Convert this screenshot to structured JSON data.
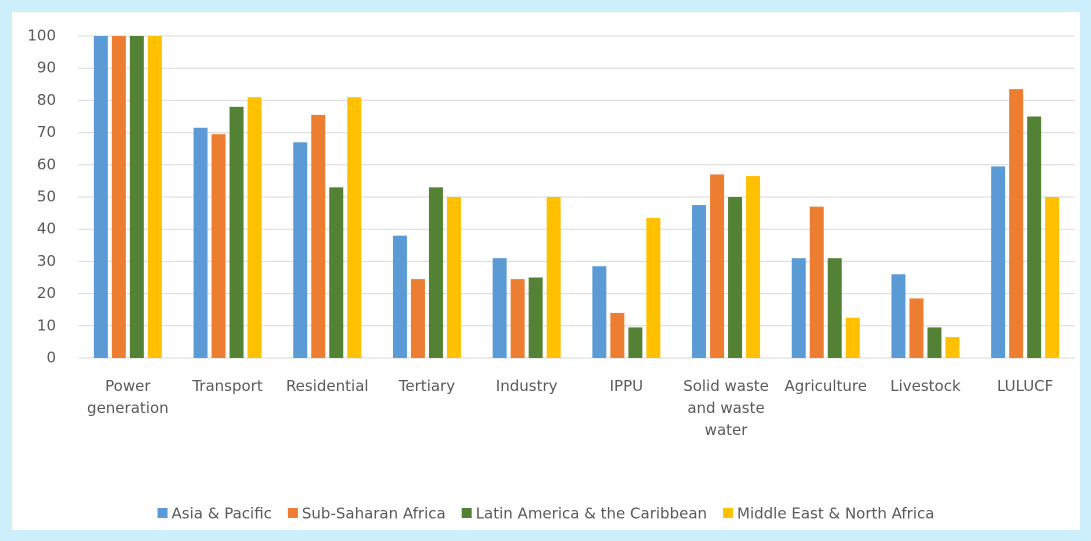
{
  "chart_data": {
    "type": "bar",
    "categories": [
      "Power generation",
      "Transport",
      "Residential",
      "Tertiary",
      "Industry",
      "IPPU",
      "Solid waste and waste water",
      "Agriculture",
      "Livestock",
      "LULUCF"
    ],
    "series": [
      {
        "name": "Asia & Pacific",
        "color": "#5b9bd5",
        "values": [
          100,
          71.5,
          67,
          38,
          31,
          28.5,
          47.5,
          31,
          26,
          59.5
        ]
      },
      {
        "name": "Sub-Saharan Africa",
        "color": "#ed7d31",
        "values": [
          100,
          69.5,
          75.5,
          24.5,
          24.5,
          14,
          57,
          47,
          18.5,
          83.5
        ]
      },
      {
        "name": "Latin America & the Caribbean",
        "color": "#548235",
        "values": [
          100,
          78,
          53,
          53,
          25,
          9.5,
          50,
          31,
          9.5,
          75
        ]
      },
      {
        "name": "Middle East & North Africa",
        "color": "#ffc000",
        "values": [
          100,
          81,
          81,
          50,
          50,
          43.5,
          56.5,
          12.5,
          6.5,
          50
        ]
      }
    ],
    "ylim": [
      0,
      100
    ],
    "yticks": [
      0,
      10,
      20,
      30,
      40,
      50,
      60,
      70,
      80,
      90,
      100
    ],
    "grid": true,
    "legend": "bottom"
  }
}
